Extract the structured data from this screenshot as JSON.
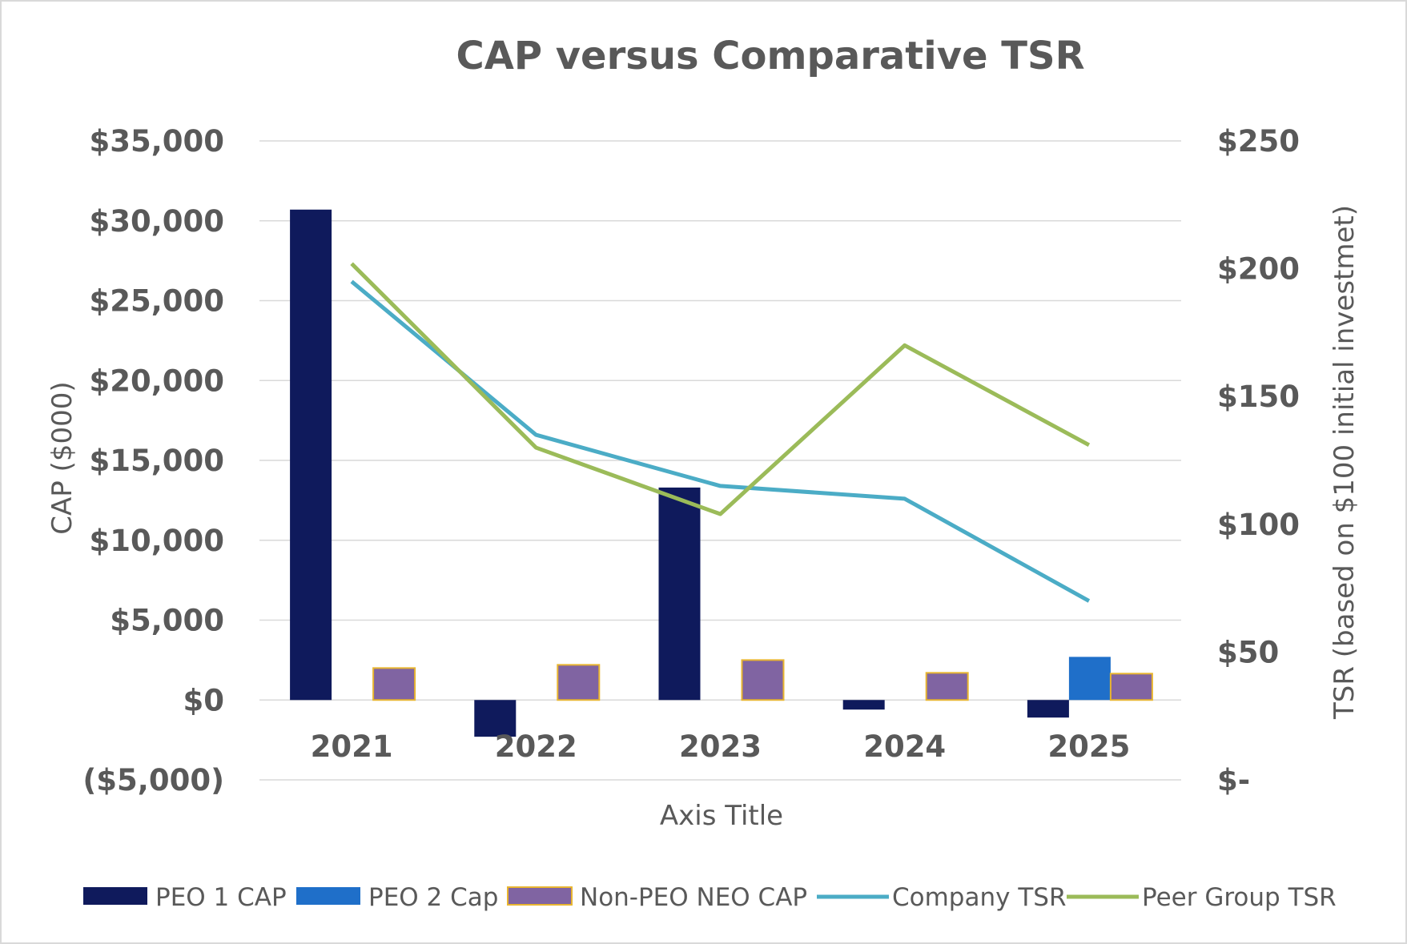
{
  "chart_data": {
    "type": "bar",
    "title": "CAP versus Comparative TSR",
    "xlabel": "Axis Title",
    "ylabel": "CAP ($000)",
    "y2label": "TSR (based on $100 initial investmet)",
    "categories": [
      "2021",
      "2022",
      "2023",
      "2024",
      "2025"
    ],
    "ylim": [
      -5000,
      35000
    ],
    "y2lim": [
      0,
      250
    ],
    "yticks": [
      -5000,
      0,
      5000,
      10000,
      15000,
      20000,
      25000,
      30000,
      35000
    ],
    "ytick_labels": [
      "($5,000)",
      "$0",
      "$5,000",
      "$10,000",
      "$15,000",
      "$20,000",
      "$25,000",
      "$30,000",
      "$35,000"
    ],
    "y2ticks": [
      0,
      50,
      100,
      150,
      200,
      250
    ],
    "y2tick_labels": [
      "$-",
      "$50",
      "$100",
      "$150",
      "$200",
      "$250"
    ],
    "grid": true,
    "legend_position": "bottom",
    "bar_series": [
      {
        "name": "PEO 1 CAP",
        "color": "#0f1a5c",
        "values": [
          30700,
          -2300,
          13300,
          -600,
          -1100
        ]
      },
      {
        "name": "PEO 2 Cap",
        "color": "#1f6fc9",
        "values": [
          0,
          0,
          0,
          0,
          2700
        ]
      },
      {
        "name": "Non-PEO NEO CAP",
        "color": "#8064a2",
        "border": "#e8b530",
        "values": [
          2000,
          2200,
          2500,
          1700,
          1650
        ]
      }
    ],
    "line_series": [
      {
        "name": "Company TSR",
        "color": "#4bacc6",
        "axis": "right",
        "values": [
          195,
          135,
          115,
          110,
          70
        ]
      },
      {
        "name": "Peer Group TSR",
        "color": "#9bbb59",
        "axis": "right",
        "values": [
          202,
          130,
          104,
          170,
          131
        ]
      }
    ]
  }
}
